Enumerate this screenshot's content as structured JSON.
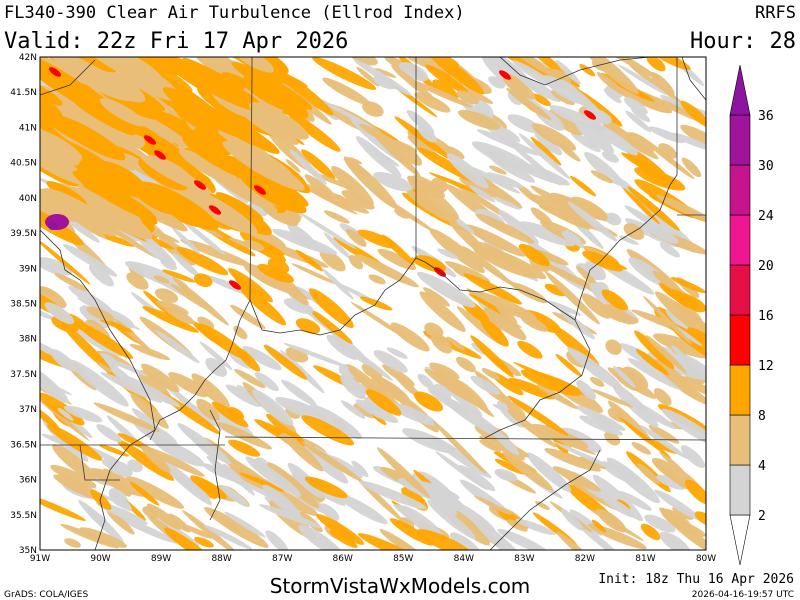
{
  "header": {
    "title": "FL340-390 Clear Air Turbulence (Ellrod Index)",
    "valid": "Valid: 22z Fri 17 Apr 2026",
    "model": "RRFS",
    "hour": "Hour: 28"
  },
  "map": {
    "lat_labels": [
      "42N",
      "41.5N",
      "41N",
      "40.5N",
      "40N",
      "39.5N",
      "39N",
      "38.5N",
      "38N",
      "37.5N",
      "37N",
      "36.5N",
      "36N",
      "35.5N",
      "35N"
    ],
    "lon_labels": [
      "91W",
      "90W",
      "89W",
      "88W",
      "87W",
      "86W",
      "85W",
      "84W",
      "83W",
      "82W",
      "81W",
      "80W"
    ]
  },
  "colorbar": {
    "levels": [
      2,
      4,
      8,
      12,
      16,
      20,
      24,
      30,
      36
    ],
    "colors": [
      "#ffffff",
      "#d4d4d4",
      "#e8be78",
      "#ffa500",
      "#ff0000",
      "#e60f46",
      "#f01691",
      "#c8148c",
      "#a0149b",
      "#8c14a0"
    ]
  },
  "footer": {
    "site": "StormVistaWxModels.com",
    "credit": "GrADS: COLA/IGES",
    "init": "Init: 18z Thu 16 Apr 2026",
    "timestamp": "2026-04-16-19:57 UTC"
  }
}
